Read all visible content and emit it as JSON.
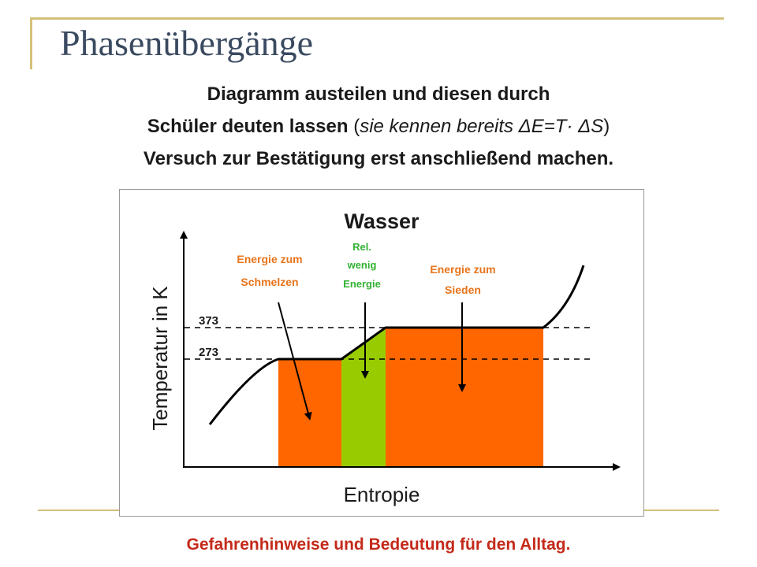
{
  "slide": {
    "title": "Phasenübergänge",
    "line1": "Diagramm austeilen und diesen durch",
    "line2_bold": "Schüler deuten lassen",
    "line2_paren_open": " (",
    "line2_italic": "sie kennen bereits ΔE=T· ΔS",
    "line2_paren_close": ")",
    "line3": "Versuch zur Bestätigung erst anschließend machen.",
    "footer": "Gefahrenhinweise und Bedeutung für den Alltag."
  },
  "diagram": {
    "heading": "Wasser",
    "x_axis_label": "Entropie",
    "y_axis_label": "Temperatur in K",
    "tick_373": "373",
    "tick_273": "273",
    "label_melt_1": "Energie zum",
    "label_melt_2": "Schmelzen",
    "label_little_1": "Rel.",
    "label_little_2": "wenig",
    "label_little_3": "Energie",
    "label_boil_1": "Energie zum",
    "label_boil_2": "Sieden",
    "colors": {
      "orange": "#ff6600",
      "green": "#99cc00",
      "melt_text": "#e8741a",
      "little_text": "#33b233"
    }
  }
}
